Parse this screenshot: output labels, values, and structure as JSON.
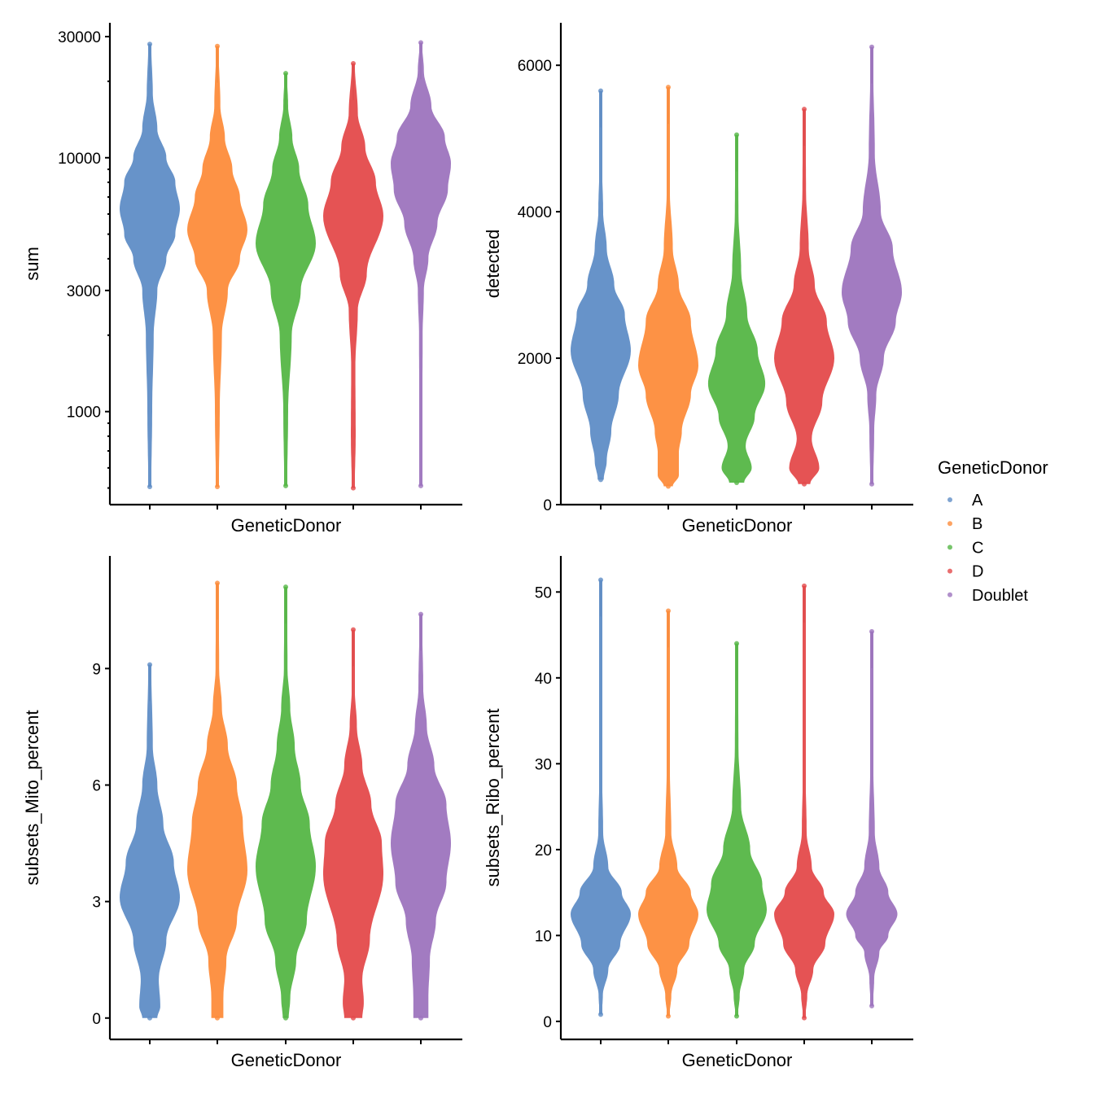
{
  "legend": {
    "title": "GeneticDonor",
    "items": [
      {
        "label": "A",
        "color": "#5f8dc6"
      },
      {
        "label": "B",
        "color": "#fd8c3b"
      },
      {
        "label": "C",
        "color": "#55b646"
      },
      {
        "label": "D",
        "color": "#e44a4b"
      },
      {
        "label": "Doublet",
        "color": "#9d74be"
      }
    ]
  },
  "chart_data": [
    {
      "type": "violin",
      "xlabel": "GeneticDonor",
      "ylabel": "sum",
      "yscale": "log10",
      "ylim": [
        430,
        34000
      ],
      "yticks": [
        1000,
        3000,
        10000,
        30000
      ],
      "ytick_labels": [
        "1000",
        "3000",
        "10000",
        "30000"
      ],
      "minor_ticks": [
        500,
        600,
        700,
        800,
        900,
        2000,
        4000,
        5000,
        6000,
        7000,
        8000,
        9000,
        20000
      ],
      "categories": [
        "A",
        "B",
        "C",
        "D",
        "Doublet"
      ],
      "series": [
        {
          "name": "A",
          "profile": [
            [
              506,
              0.05
            ],
            [
              1000,
              0.08
            ],
            [
              2000,
              0.13
            ],
            [
              3000,
              0.25
            ],
            [
              4000,
              0.55
            ],
            [
              5000,
              0.85
            ],
            [
              6300,
              1
            ],
            [
              8000,
              0.85
            ],
            [
              10000,
              0.55
            ],
            [
              13000,
              0.25
            ],
            [
              18000,
              0.1
            ],
            [
              28000,
              0.05
            ]
          ]
        },
        {
          "name": "B",
          "profile": [
            [
              506,
              0.05
            ],
            [
              1000,
              0.08
            ],
            [
              2000,
              0.15
            ],
            [
              3000,
              0.35
            ],
            [
              4000,
              0.75
            ],
            [
              5200,
              1
            ],
            [
              7000,
              0.75
            ],
            [
              9000,
              0.5
            ],
            [
              12000,
              0.25
            ],
            [
              16000,
              0.1
            ],
            [
              27500,
              0.04
            ]
          ]
        },
        {
          "name": "C",
          "profile": [
            [
              510,
              0.05
            ],
            [
              1000,
              0.08
            ],
            [
              2000,
              0.2
            ],
            [
              3000,
              0.5
            ],
            [
              4600,
              1
            ],
            [
              6500,
              0.75
            ],
            [
              9000,
              0.45
            ],
            [
              12000,
              0.22
            ],
            [
              16000,
              0.08
            ],
            [
              21500,
              0.04
            ]
          ]
        },
        {
          "name": "D",
          "profile": [
            [
              500,
              0.05
            ],
            [
              800,
              0.08
            ],
            [
              1500,
              0.07
            ],
            [
              2500,
              0.15
            ],
            [
              3500,
              0.45
            ],
            [
              5900,
              1
            ],
            [
              8000,
              0.75
            ],
            [
              11000,
              0.4
            ],
            [
              15000,
              0.15
            ],
            [
              23500,
              0.05
            ]
          ]
        },
        {
          "name": "Doublet",
          "profile": [
            [
              510,
              0.04
            ],
            [
              1000,
              0.05
            ],
            [
              2000,
              0.06
            ],
            [
              3000,
              0.1
            ],
            [
              4000,
              0.25
            ],
            [
              5500,
              0.55
            ],
            [
              7500,
              0.9
            ],
            [
              9500,
              1
            ],
            [
              12000,
              0.8
            ],
            [
              16000,
              0.35
            ],
            [
              22000,
              0.1
            ],
            [
              28400,
              0.04
            ]
          ]
        }
      ]
    },
    {
      "type": "violin",
      "xlabel": "GeneticDonor",
      "ylabel": "detected",
      "yscale": "linear",
      "ylim": [
        0,
        6580
      ],
      "yticks": [
        0,
        2000,
        4000,
        6000
      ],
      "ytick_labels": [
        "0",
        "2000",
        "4000",
        "6000"
      ],
      "categories": [
        "A",
        "B",
        "C",
        "D",
        "Doublet"
      ],
      "series": [
        {
          "name": "A",
          "profile": [
            [
              340,
              0.1
            ],
            [
              600,
              0.2
            ],
            [
              1000,
              0.35
            ],
            [
              1500,
              0.6
            ],
            [
              2100,
              1
            ],
            [
              2600,
              0.8
            ],
            [
              3000,
              0.45
            ],
            [
              3500,
              0.2
            ],
            [
              4000,
              0.08
            ],
            [
              4700,
              0.04
            ],
            [
              5650,
              0.03
            ]
          ]
        },
        {
          "name": "B",
          "profile": [
            [
              250,
              0.15
            ],
            [
              400,
              0.35
            ],
            [
              700,
              0.35
            ],
            [
              1000,
              0.45
            ],
            [
              1500,
              0.75
            ],
            [
              1900,
              1
            ],
            [
              2500,
              0.75
            ],
            [
              3000,
              0.35
            ],
            [
              3500,
              0.15
            ],
            [
              4300,
              0.05
            ],
            [
              5700,
              0.03
            ]
          ]
        },
        {
          "name": "C",
          "profile": [
            [
              300,
              0.25
            ],
            [
              500,
              0.5
            ],
            [
              800,
              0.3
            ],
            [
              1200,
              0.6
            ],
            [
              1650,
              0.95
            ],
            [
              2100,
              0.7
            ],
            [
              2600,
              0.35
            ],
            [
              3200,
              0.15
            ],
            [
              4000,
              0.06
            ],
            [
              5050,
              0.03
            ]
          ]
        },
        {
          "name": "D",
          "profile": [
            [
              280,
              0.2
            ],
            [
              500,
              0.5
            ],
            [
              900,
              0.25
            ],
            [
              1400,
              0.6
            ],
            [
              2000,
              1
            ],
            [
              2500,
              0.75
            ],
            [
              3000,
              0.35
            ],
            [
              3500,
              0.15
            ],
            [
              4300,
              0.06
            ],
            [
              5400,
              0.03
            ]
          ]
        },
        {
          "name": "Doublet",
          "profile": [
            [
              280,
              0.05
            ],
            [
              1000,
              0.08
            ],
            [
              1500,
              0.15
            ],
            [
              2000,
              0.4
            ],
            [
              2500,
              0.8
            ],
            [
              2900,
              1
            ],
            [
              3500,
              0.7
            ],
            [
              4000,
              0.3
            ],
            [
              4800,
              0.1
            ],
            [
              6250,
              0.03
            ]
          ]
        }
      ]
    },
    {
      "type": "violin",
      "xlabel": "GeneticDonor",
      "ylabel": "subsets_Mito_percent",
      "yscale": "linear",
      "ylim": [
        -0.55,
        11.9
      ],
      "yticks": [
        0,
        3,
        6,
        9
      ],
      "ytick_labels": [
        "0",
        "3",
        "6",
        "9"
      ],
      "categories": [
        "A",
        "B",
        "C",
        "D",
        "Doublet"
      ],
      "series": [
        {
          "name": "A",
          "profile": [
            [
              0,
              0.25
            ],
            [
              0.3,
              0.35
            ],
            [
              1,
              0.3
            ],
            [
              2,
              0.55
            ],
            [
              3.1,
              1
            ],
            [
              4,
              0.8
            ],
            [
              5,
              0.45
            ],
            [
              6,
              0.25
            ],
            [
              7,
              0.1
            ],
            [
              9.1,
              0.05
            ]
          ]
        },
        {
          "name": "B",
          "profile": [
            [
              0,
              0.2
            ],
            [
              0.5,
              0.2
            ],
            [
              1.5,
              0.3
            ],
            [
              2.5,
              0.65
            ],
            [
              3.8,
              1
            ],
            [
              5,
              0.85
            ],
            [
              6,
              0.65
            ],
            [
              7,
              0.35
            ],
            [
              8,
              0.15
            ],
            [
              9,
              0.06
            ],
            [
              11.2,
              0.04
            ]
          ]
        },
        {
          "name": "C",
          "profile": [
            [
              0,
              0.1
            ],
            [
              0.5,
              0.15
            ],
            [
              1.5,
              0.35
            ],
            [
              2.5,
              0.7
            ],
            [
              3.9,
              1
            ],
            [
              5,
              0.8
            ],
            [
              6,
              0.5
            ],
            [
              7,
              0.3
            ],
            [
              8,
              0.15
            ],
            [
              9,
              0.06
            ],
            [
              11.1,
              0.04
            ]
          ]
        },
        {
          "name": "D",
          "profile": [
            [
              0,
              0.3
            ],
            [
              0.4,
              0.35
            ],
            [
              1,
              0.3
            ],
            [
              2,
              0.55
            ],
            [
              3.7,
              1
            ],
            [
              4.5,
              0.95
            ],
            [
              5.5,
              0.6
            ],
            [
              6.5,
              0.3
            ],
            [
              7.5,
              0.12
            ],
            [
              8.5,
              0.05
            ],
            [
              10,
              0.04
            ]
          ]
        },
        {
          "name": "Doublet",
          "profile": [
            [
              0,
              0.25
            ],
            [
              0.5,
              0.25
            ],
            [
              1.5,
              0.3
            ],
            [
              2.5,
              0.5
            ],
            [
              3.5,
              0.85
            ],
            [
              4.5,
              1
            ],
            [
              5.5,
              0.85
            ],
            [
              6.5,
              0.45
            ],
            [
              7.5,
              0.2
            ],
            [
              8.5,
              0.08
            ],
            [
              10.4,
              0.04
            ]
          ]
        }
      ]
    },
    {
      "type": "violin",
      "xlabel": "GeneticDonor",
      "ylabel": "subsets_Ribo_percent",
      "yscale": "linear",
      "ylim": [
        -2.1,
        54.2
      ],
      "yticks": [
        0,
        10,
        20,
        30,
        40,
        50
      ],
      "ytick_labels": [
        "0",
        "10",
        "20",
        "30",
        "40",
        "50"
      ],
      "categories": [
        "A",
        "B",
        "C",
        "D",
        "Doublet"
      ],
      "series": [
        {
          "name": "A",
          "profile": [
            [
              0.8,
              0.04
            ],
            [
              3,
              0.07
            ],
            [
              6,
              0.25
            ],
            [
              9,
              0.65
            ],
            [
              12.5,
              1
            ],
            [
              15,
              0.7
            ],
            [
              18,
              0.25
            ],
            [
              22,
              0.08
            ],
            [
              30,
              0.04
            ],
            [
              51.4,
              0.03
            ]
          ]
        },
        {
          "name": "B",
          "profile": [
            [
              0.6,
              0.04
            ],
            [
              3,
              0.1
            ],
            [
              6,
              0.3
            ],
            [
              9,
              0.7
            ],
            [
              12.5,
              1
            ],
            [
              15,
              0.75
            ],
            [
              18,
              0.3
            ],
            [
              22,
              0.1
            ],
            [
              30,
              0.05
            ],
            [
              47.8,
              0.03
            ]
          ]
        },
        {
          "name": "C",
          "profile": [
            [
              0.6,
              0.04
            ],
            [
              3,
              0.1
            ],
            [
              6,
              0.25
            ],
            [
              9,
              0.6
            ],
            [
              13,
              1
            ],
            [
              16,
              0.85
            ],
            [
              20,
              0.45
            ],
            [
              25,
              0.15
            ],
            [
              32,
              0.06
            ],
            [
              44,
              0.03
            ]
          ]
        },
        {
          "name": "D",
          "profile": [
            [
              0.4,
              0.04
            ],
            [
              3,
              0.1
            ],
            [
              6,
              0.3
            ],
            [
              9,
              0.7
            ],
            [
              12.5,
              1
            ],
            [
              15,
              0.65
            ],
            [
              18,
              0.25
            ],
            [
              22,
              0.08
            ],
            [
              30,
              0.04
            ],
            [
              50.7,
              0.03
            ]
          ]
        },
        {
          "name": "Doublet",
          "profile": [
            [
              1.8,
              0.04
            ],
            [
              5,
              0.08
            ],
            [
              8,
              0.25
            ],
            [
              10,
              0.55
            ],
            [
              12.5,
              0.85
            ],
            [
              15,
              0.55
            ],
            [
              18,
              0.25
            ],
            [
              22,
              0.1
            ],
            [
              30,
              0.05
            ],
            [
              45.4,
              0.03
            ]
          ]
        }
      ]
    }
  ]
}
